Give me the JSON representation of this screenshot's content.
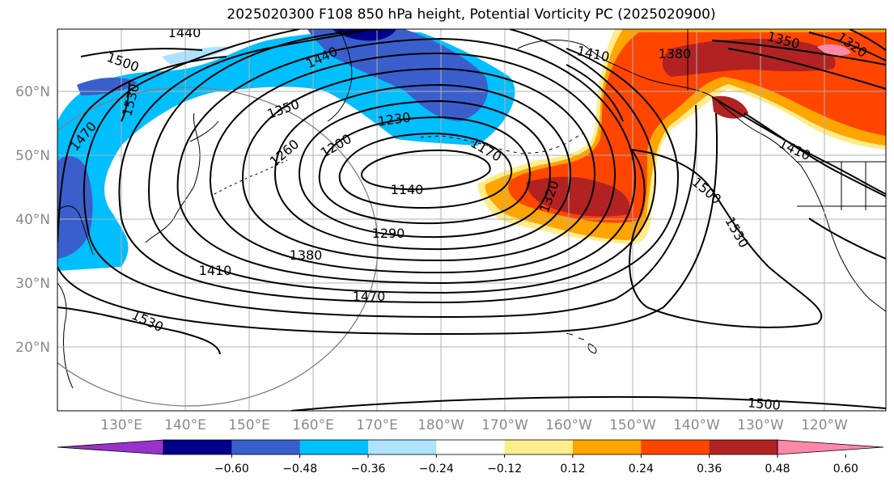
{
  "title": "2025020300 F108 850 hPa height, Potential Vorticity PC (2025020900)",
  "map": {
    "lat_labels": [
      "60°N",
      "50°N",
      "40°N",
      "30°N",
      "20°N"
    ],
    "lon_labels": [
      "130°E",
      "140°E",
      "150°E",
      "160°E",
      "170°E",
      "180°W",
      "170°W",
      "160°W",
      "150°W",
      "140°W",
      "130°W",
      "120°W"
    ],
    "contour_labels": [
      "1440",
      "1500",
      "1530",
      "1470",
      "1350",
      "1440",
      "1230",
      "1200",
      "1260",
      "1170",
      "1140",
      "1320",
      "1290",
      "1380",
      "1410",
      "1470",
      "1530",
      "1410",
      "1380",
      "1350",
      "1320",
      "1410",
      "1500",
      "1530",
      "1500"
    ],
    "colors": {
      "land_coast": "#000000",
      "contours": "#000000",
      "grid": "#b0b0b0",
      "circle": "#808080"
    }
  },
  "colorbar": {
    "ticks": [
      "−0.60",
      "−0.48",
      "−0.36",
      "−0.24",
      "−0.12",
      "0.12",
      "0.24",
      "0.36",
      "0.48",
      "0.60"
    ],
    "colors": [
      "#9932cc",
      "#00008b",
      "#3a5fcd",
      "#00bfff",
      "#b0e2ff",
      "#ffffff",
      "#ffec8b",
      "#ffa500",
      "#ff4500",
      "#b22222",
      "#ff88aa"
    ]
  }
}
